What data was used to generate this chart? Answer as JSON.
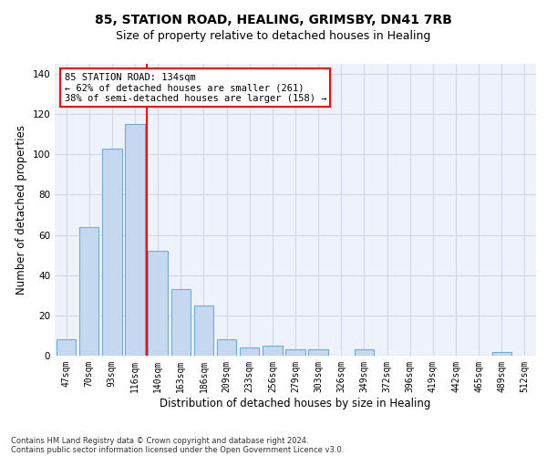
{
  "title1": "85, STATION ROAD, HEALING, GRIMSBY, DN41 7RB",
  "title2": "Size of property relative to detached houses in Healing",
  "xlabel": "Distribution of detached houses by size in Healing",
  "ylabel": "Number of detached properties",
  "bar_labels": [
    "47sqm",
    "70sqm",
    "93sqm",
    "116sqm",
    "140sqm",
    "163sqm",
    "186sqm",
    "209sqm",
    "233sqm",
    "256sqm",
    "279sqm",
    "303sqm",
    "326sqm",
    "349sqm",
    "372sqm",
    "396sqm",
    "419sqm",
    "442sqm",
    "465sqm",
    "489sqm",
    "512sqm"
  ],
  "bar_values": [
    8,
    64,
    103,
    115,
    52,
    33,
    25,
    8,
    4,
    5,
    3,
    3,
    0,
    3,
    0,
    0,
    0,
    0,
    0,
    2,
    0
  ],
  "bar_color": "#c5d8f0",
  "bar_edgecolor": "#6aaed6",
  "vline_x": 3.5,
  "vline_color": "red",
  "vline_linewidth": 1.5,
  "ylim": [
    0,
    145
  ],
  "yticks": [
    0,
    20,
    40,
    60,
    80,
    100,
    120,
    140
  ],
  "annotation_title": "85 STATION ROAD: 134sqm",
  "annotation_line1": "← 62% of detached houses are smaller (261)",
  "annotation_line2": "38% of semi-detached houses are larger (158) →",
  "annotation_box_color": "white",
  "annotation_box_edgecolor": "red",
  "footnote1": "Contains HM Land Registry data © Crown copyright and database right 2024.",
  "footnote2": "Contains public sector information licensed under the Open Government Licence v3.0.",
  "background_color": "#eef2fa",
  "grid_color": "#d0d8e8",
  "title1_fontsize": 10,
  "title2_fontsize": 9,
  "xlabel_fontsize": 8.5,
  "ylabel_fontsize": 8.5,
  "annotation_fontsize": 7.5,
  "tick_fontsize": 7,
  "footnote_fontsize": 6
}
